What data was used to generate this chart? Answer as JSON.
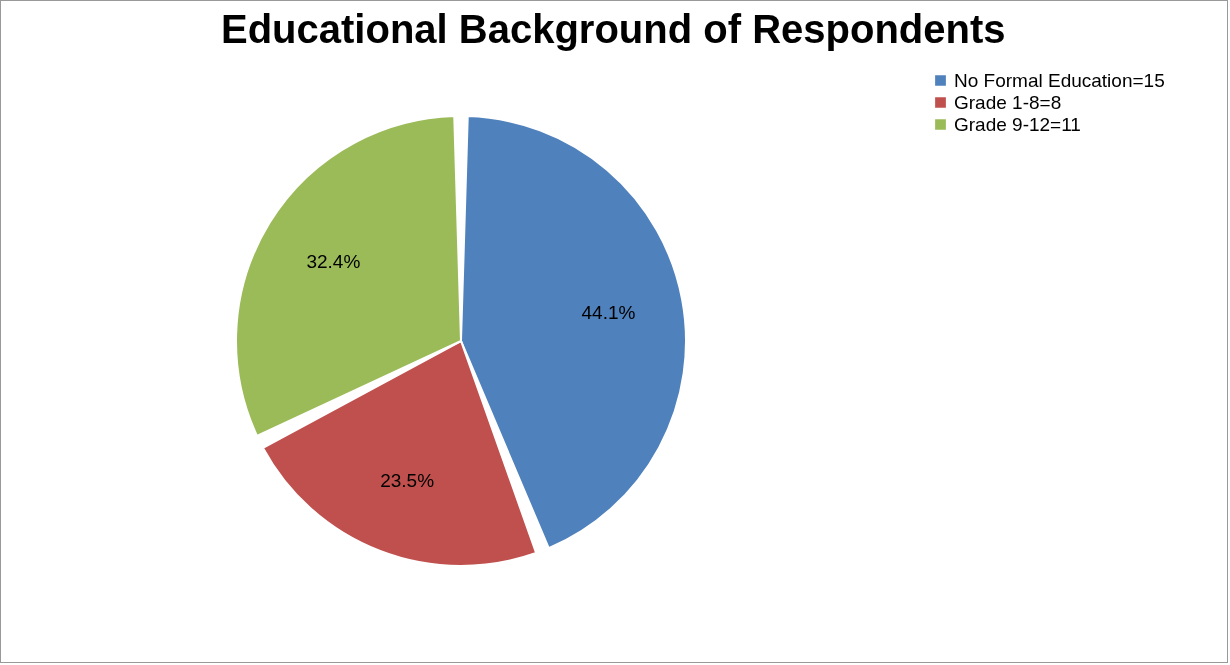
{
  "chart_data": {
    "type": "pie",
    "title": "Educational Background of Respondents",
    "categories": [
      "No Formal Education=15",
      "Grade 1-8=8",
      "Grade 9-12=11"
    ],
    "values": [
      44.1,
      23.5,
      32.4
    ],
    "colors": [
      "#4f81bd",
      "#c0504d",
      "#9bbb59"
    ],
    "value_labels": [
      "44.1%",
      "23.5%",
      "32.4%"
    ],
    "legend": "right"
  }
}
